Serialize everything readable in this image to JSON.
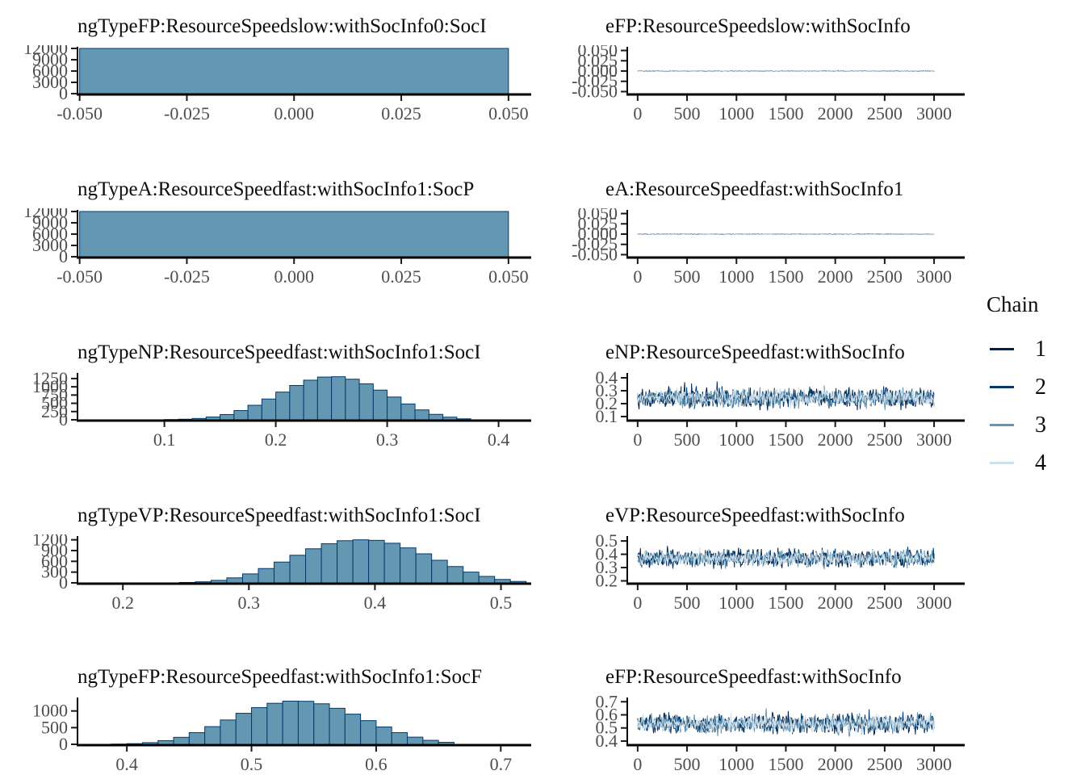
{
  "page": {
    "background": "#ffffff"
  },
  "colors": {
    "hist_fill": "#6497b1",
    "hist_stroke": "#03396c",
    "axis": "#000000",
    "tick_mark": "#1a1a1a",
    "tick_label": "#4d4d4d",
    "title_text": "#0d0d0d"
  },
  "legend": {
    "title": "Chain",
    "items": [
      {
        "label": "1",
        "color": "#011f4b"
      },
      {
        "label": "2",
        "color": "#03396c"
      },
      {
        "label": "3",
        "color": "#6497b1"
      },
      {
        "label": "4",
        "color": "#d1e1ec"
      }
    ]
  },
  "chart_data": [
    {
      "type": "hist",
      "title": "ngTypeFP:ResourceSpeedslow:withSocInfo0:SocI",
      "x_axis": {
        "min": -0.0505,
        "max": 0.0553,
        "ticks": [
          {
            "v": -0.05,
            "label": "-0.050"
          },
          {
            "v": -0.025,
            "label": "-0.025"
          },
          {
            "v": 0.0,
            "label": "0.000"
          },
          {
            "v": 0.025,
            "label": "0.025"
          },
          {
            "v": 0.05,
            "label": "0.050"
          }
        ]
      },
      "y_axis": {
        "max": 12000,
        "ticks": [
          {
            "v": 12000,
            "label": "12000"
          },
          {
            "v": 9000,
            "label": "9000"
          },
          {
            "v": 6000,
            "label": "6000"
          },
          {
            "v": 3000,
            "label": "3000"
          },
          {
            "v": 0,
            "label": "0"
          }
        ]
      },
      "bars": {
        "uniform": true,
        "from": -0.05,
        "to": 0.05,
        "count": 12000
      }
    },
    {
      "type": "trace",
      "title": "eFP:ResourceSpeedslow:withSocInfo",
      "x_axis": {
        "min": -105,
        "max": 3310,
        "ticks": [
          {
            "v": 0,
            "label": "0"
          },
          {
            "v": 500,
            "label": "500"
          },
          {
            "v": 1000,
            "label": "1000"
          },
          {
            "v": 1500,
            "label": "1500"
          },
          {
            "v": 2000,
            "label": "2000"
          },
          {
            "v": 2500,
            "label": "2500"
          },
          {
            "v": 3000,
            "label": "3000"
          }
        ]
      },
      "y_axis": {
        "min": -0.055,
        "max": 0.055,
        "ticks": [
          {
            "v": 0.05,
            "label": "0.050"
          },
          {
            "v": 0.025,
            "label": "0.025"
          },
          {
            "v": 0.0,
            "label": "0.000"
          },
          {
            "v": -0.025,
            "label": "-0.025"
          },
          {
            "v": -0.05,
            "label": "-0.050"
          }
        ]
      },
      "series": {
        "center": 0.0,
        "spread": 0.0012,
        "x_from": 0,
        "x_to": 3000,
        "chains": [
          1,
          2,
          3,
          4
        ]
      }
    },
    {
      "type": "hist",
      "title": "ngTypeA:ResourceSpeedfast:withSocInfo1:SocP",
      "x_axis": {
        "min": -0.0505,
        "max": 0.0553,
        "ticks": [
          {
            "v": -0.05,
            "label": "-0.050"
          },
          {
            "v": -0.025,
            "label": "-0.025"
          },
          {
            "v": 0.0,
            "label": "0.000"
          },
          {
            "v": 0.025,
            "label": "0.025"
          },
          {
            "v": 0.05,
            "label": "0.050"
          }
        ]
      },
      "y_axis": {
        "max": 12000,
        "ticks": [
          {
            "v": 12000,
            "label": "12000"
          },
          {
            "v": 9000,
            "label": "9000"
          },
          {
            "v": 6000,
            "label": "6000"
          },
          {
            "v": 3000,
            "label": "3000"
          },
          {
            "v": 0,
            "label": "0"
          }
        ]
      },
      "bars": {
        "uniform": true,
        "from": -0.05,
        "to": 0.05,
        "count": 12000
      }
    },
    {
      "type": "trace",
      "title": "eA:ResourceSpeedfast:withSocInfo1",
      "x_axis": {
        "min": -105,
        "max": 3310,
        "ticks": [
          {
            "v": 0,
            "label": "0"
          },
          {
            "v": 500,
            "label": "500"
          },
          {
            "v": 1000,
            "label": "1000"
          },
          {
            "v": 1500,
            "label": "1500"
          },
          {
            "v": 2000,
            "label": "2000"
          },
          {
            "v": 2500,
            "label": "2500"
          },
          {
            "v": 3000,
            "label": "3000"
          }
        ]
      },
      "y_axis": {
        "min": -0.055,
        "max": 0.055,
        "ticks": [
          {
            "v": 0.05,
            "label": "0.050"
          },
          {
            "v": 0.025,
            "label": "0.025"
          },
          {
            "v": 0.0,
            "label": "0.000"
          },
          {
            "v": -0.025,
            "label": "-0.025"
          },
          {
            "v": -0.05,
            "label": "-0.050"
          }
        ]
      },
      "series": {
        "center": 0.0,
        "spread": 0.0012,
        "x_from": 0,
        "x_to": 3000,
        "chains": [
          1,
          2,
          3,
          4
        ]
      }
    },
    {
      "type": "hist",
      "title": "ngTypeNP:ResourceSpeedfast:withSocInfo1:SocI",
      "x_axis": {
        "min": 0.022,
        "max": 0.4293,
        "ticks": [
          {
            "v": 0.1,
            "label": "0.1"
          },
          {
            "v": 0.2,
            "label": "0.2"
          },
          {
            "v": 0.3,
            "label": "0.3"
          },
          {
            "v": 0.4,
            "label": "0.4"
          }
        ]
      },
      "y_axis": {
        "max": 1370,
        "ticks": [
          {
            "v": 1250,
            "label": "1250"
          },
          {
            "v": 1000,
            "label": "1000"
          },
          {
            "v": 750,
            "label": "750"
          },
          {
            "v": 500,
            "label": "500"
          },
          {
            "v": 250,
            "label": "250"
          },
          {
            "v": 0,
            "label": "0"
          }
        ]
      },
      "bars": {
        "uniform": false,
        "start": 0.1,
        "bin_width": 0.0125,
        "counts": [
          8,
          18,
          40,
          85,
          160,
          280,
          440,
          630,
          840,
          1040,
          1200,
          1295,
          1305,
          1230,
          1090,
          900,
          690,
          480,
          300,
          165,
          80,
          30
        ]
      }
    },
    {
      "type": "trace",
      "title": "eNP:ResourceSpeedfast:withSocInfo",
      "x_axis": {
        "min": -105,
        "max": 3310,
        "ticks": [
          {
            "v": 0,
            "label": "0"
          },
          {
            "v": 500,
            "label": "500"
          },
          {
            "v": 1000,
            "label": "1000"
          },
          {
            "v": 1500,
            "label": "1500"
          },
          {
            "v": 2000,
            "label": "2000"
          },
          {
            "v": 2500,
            "label": "2500"
          },
          {
            "v": 3000,
            "label": "3000"
          }
        ]
      },
      "y_axis": {
        "min": 0.075,
        "max": 0.425,
        "ticks": [
          {
            "v": 0.4,
            "label": "0.4"
          },
          {
            "v": 0.3,
            "label": "0.3"
          },
          {
            "v": 0.2,
            "label": "0.2"
          },
          {
            "v": 0.1,
            "label": "0.1"
          }
        ]
      },
      "series": {
        "center": 0.245,
        "spread": 0.105,
        "x_from": 0,
        "x_to": 3000,
        "chains": [
          1,
          2,
          3,
          4
        ]
      }
    },
    {
      "type": "hist",
      "title": "ngTypeVP:ResourceSpeedfast:withSocInfo1:SocI",
      "x_axis": {
        "min": 0.164,
        "max": 0.524,
        "ticks": [
          {
            "v": 0.2,
            "label": "0.2"
          },
          {
            "v": 0.3,
            "label": "0.3"
          },
          {
            "v": 0.4,
            "label": "0.4"
          },
          {
            "v": 0.5,
            "label": "0.5"
          }
        ]
      },
      "y_axis": {
        "max": 1260,
        "ticks": [
          {
            "v": 1200,
            "label": "1200"
          },
          {
            "v": 900,
            "label": "900"
          },
          {
            "v": 600,
            "label": "600"
          },
          {
            "v": 300,
            "label": "300"
          },
          {
            "v": 0,
            "label": "0"
          }
        ]
      },
      "bars": {
        "uniform": false,
        "start": 0.245,
        "bin_width": 0.0125,
        "counts": [
          12,
          30,
          70,
          140,
          250,
          400,
          580,
          770,
          950,
          1090,
          1175,
          1200,
          1185,
          1105,
          975,
          810,
          630,
          455,
          300,
          180,
          95,
          40
        ]
      }
    },
    {
      "type": "trace",
      "title": "eVP:ResourceSpeedfast:withSocInfo",
      "x_axis": {
        "min": -105,
        "max": 3310,
        "ticks": [
          {
            "v": 0,
            "label": "0"
          },
          {
            "v": 500,
            "label": "500"
          },
          {
            "v": 1000,
            "label": "1000"
          },
          {
            "v": 1500,
            "label": "1500"
          },
          {
            "v": 2000,
            "label": "2000"
          },
          {
            "v": 2500,
            "label": "2500"
          },
          {
            "v": 3000,
            "label": "3000"
          }
        ]
      },
      "y_axis": {
        "min": 0.185,
        "max": 0.525,
        "ticks": [
          {
            "v": 0.5,
            "label": "0.5"
          },
          {
            "v": 0.4,
            "label": "0.4"
          },
          {
            "v": 0.3,
            "label": "0.3"
          },
          {
            "v": 0.2,
            "label": "0.2"
          }
        ]
      },
      "series": {
        "center": 0.37,
        "spread": 0.092,
        "x_from": 0,
        "x_to": 3000,
        "chains": [
          1,
          2,
          3,
          4
        ]
      }
    },
    {
      "type": "hist",
      "title": "ngTypeFP:ResourceSpeedfast:withSocInfo1:SocF",
      "x_axis": {
        "min": 0.3604,
        "max": 0.7244,
        "ticks": [
          {
            "v": 0.4,
            "label": "0.4"
          },
          {
            "v": 0.5,
            "label": "0.5"
          },
          {
            "v": 0.6,
            "label": "0.6"
          },
          {
            "v": 0.7,
            "label": "0.7"
          }
        ]
      },
      "y_axis": {
        "max": 1355,
        "ticks": [
          {
            "v": 1000,
            "label": "1000"
          },
          {
            "v": 500,
            "label": "500"
          },
          {
            "v": 0,
            "label": "0"
          }
        ]
      },
      "bars": {
        "uniform": false,
        "start": 0.3875,
        "bin_width": 0.0125,
        "counts": [
          8,
          20,
          50,
          110,
          210,
          350,
          530,
          730,
          930,
          1100,
          1230,
          1295,
          1290,
          1215,
          1080,
          905,
          710,
          520,
          350,
          215,
          120,
          60
        ]
      }
    },
    {
      "type": "trace",
      "title": "eFP:ResourceSpeedfast:withSocInfo",
      "x_axis": {
        "min": -105,
        "max": 3310,
        "ticks": [
          {
            "v": 0,
            "label": "0"
          },
          {
            "v": 500,
            "label": "500"
          },
          {
            "v": 1000,
            "label": "1000"
          },
          {
            "v": 1500,
            "label": "1500"
          },
          {
            "v": 2000,
            "label": "2000"
          },
          {
            "v": 2500,
            "label": "2500"
          },
          {
            "v": 3000,
            "label": "3000"
          }
        ]
      },
      "y_axis": {
        "min": 0.375,
        "max": 0.72,
        "ticks": [
          {
            "v": 0.7,
            "label": "0.7"
          },
          {
            "v": 0.6,
            "label": "0.6"
          },
          {
            "v": 0.5,
            "label": "0.5"
          },
          {
            "v": 0.4,
            "label": "0.4"
          }
        ]
      },
      "series": {
        "center": 0.532,
        "spread": 0.105,
        "x_from": 0,
        "x_to": 3000,
        "chains": [
          1,
          2,
          3,
          4
        ]
      }
    }
  ]
}
